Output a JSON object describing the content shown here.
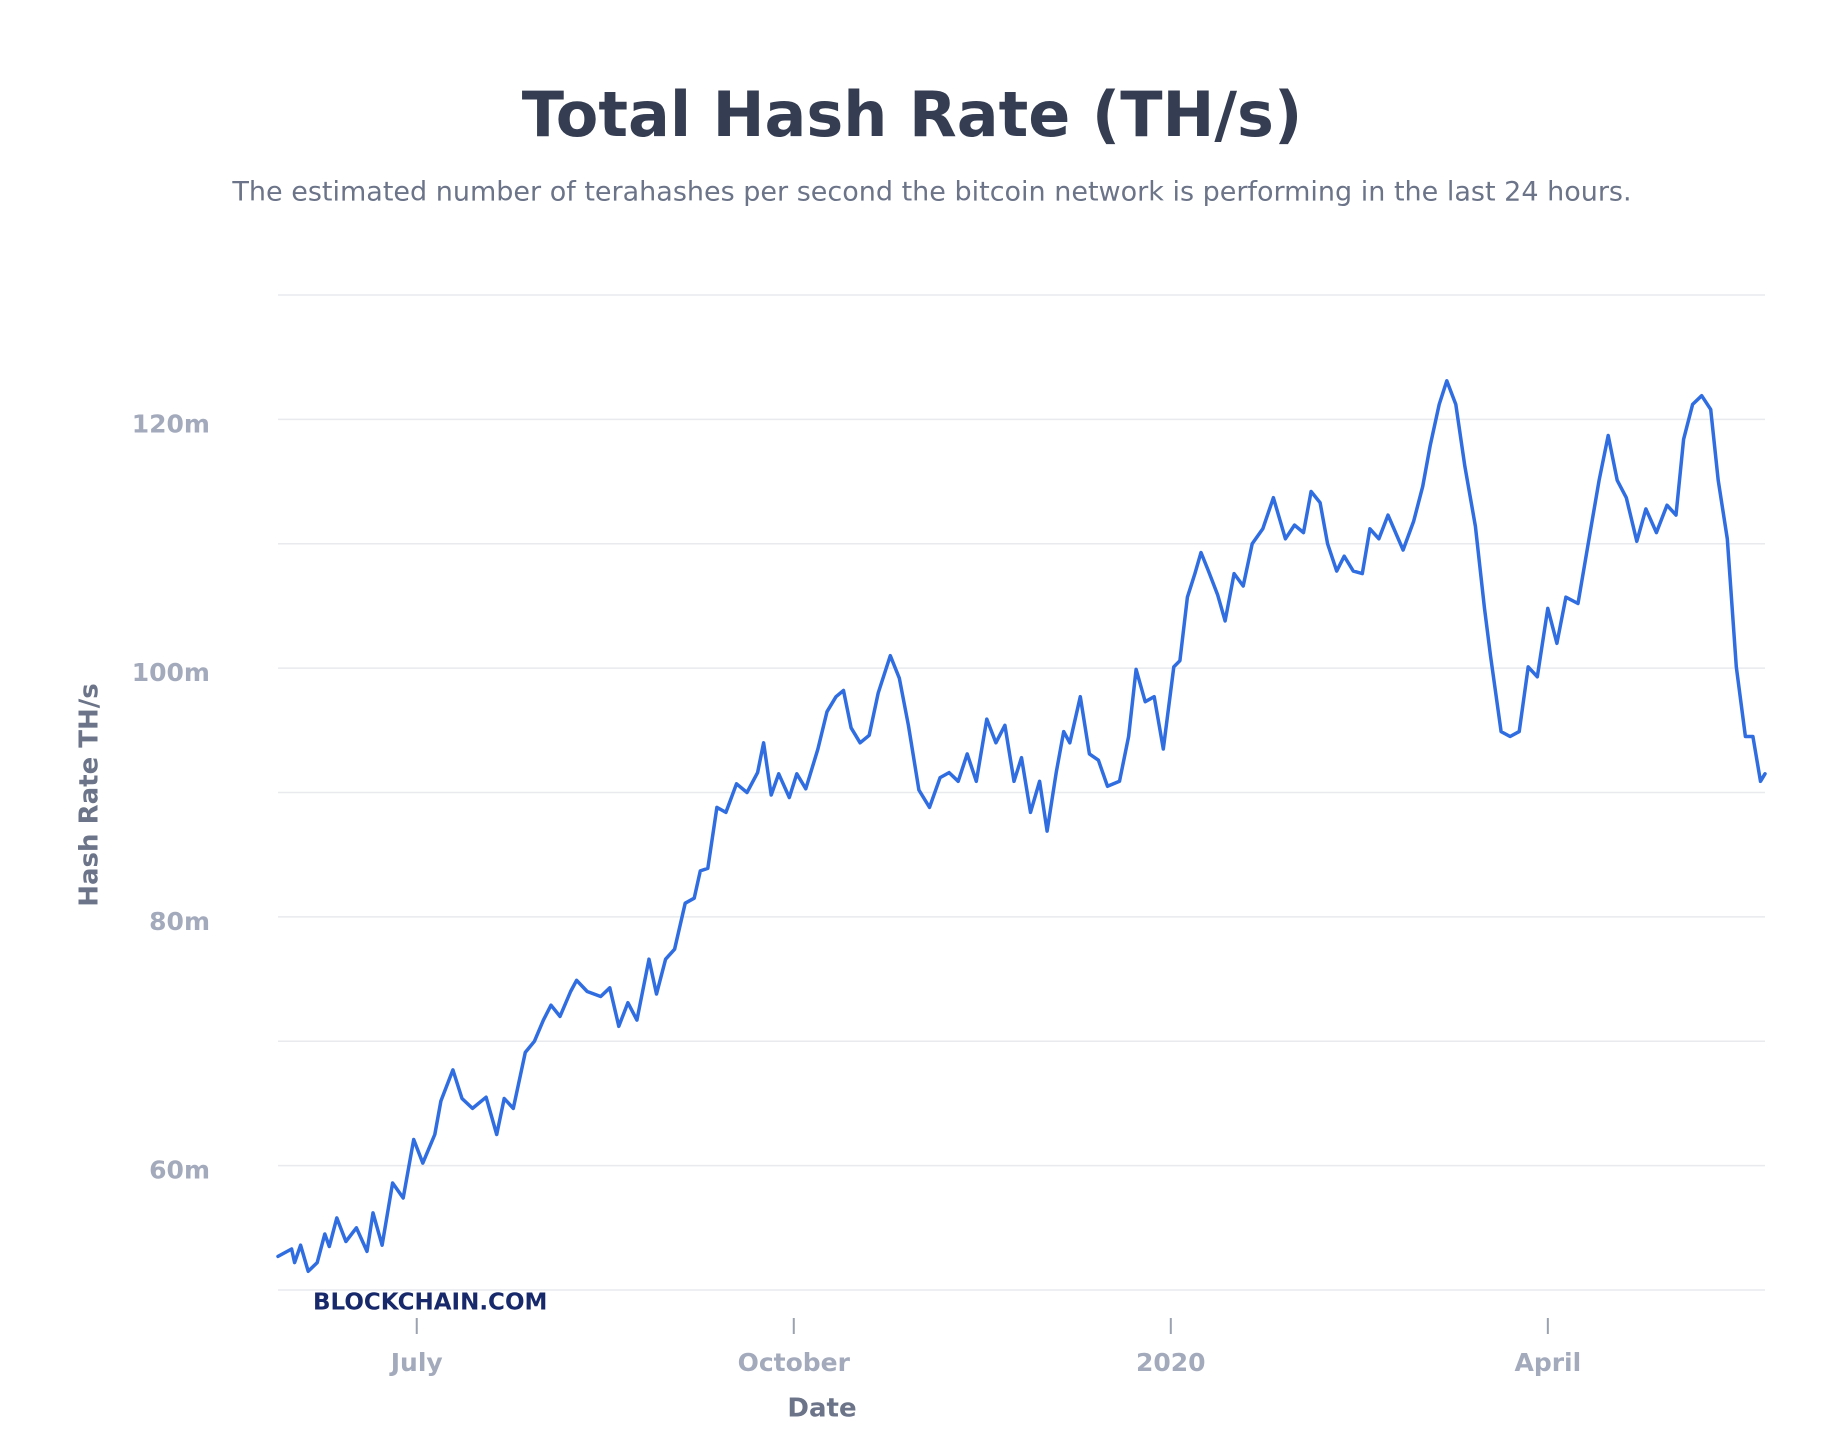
{
  "chart_data": {
    "type": "line",
    "title": "Total Hash Rate (TH/s)",
    "subtitle": "The estimated number of terahashes per second the bitcoin network is performing in the last 24 hours.",
    "x_label": "Date",
    "y_label": "Hash Rate TH/s",
    "watermark": "BLOCKCHAIN.COM",
    "color": "#2f6de1",
    "grid": true,
    "xlim": [
      2019.408,
      2020.394
    ],
    "xticks": [
      {
        "value": 2019.5,
        "label": "July"
      },
      {
        "value": 2019.75,
        "label": "October"
      },
      2020,
      {
        "value": 2020.25,
        "label": "April"
      }
    ],
    "ylim": [
      50000000,
      130000000
    ],
    "yticks": [
      {
        "value": 60000000,
        "label": "60m"
      },
      {
        "value": 80000000,
        "label": "80m"
      },
      {
        "value": 100000000,
        "label": "100m"
      },
      {
        "value": 120000000,
        "label": "120m"
      }
    ],
    "minor_yticks": [
      50000000,
      70000000,
      90000000,
      110000000,
      130000000
    ],
    "x": [
      2019.408,
      2019.417,
      2019.419,
      2019.423,
      2019.428,
      2019.434,
      2019.439,
      2019.442,
      2019.447,
      2019.453,
      2019.46,
      2019.467,
      2019.471,
      2019.477,
      2019.484,
      2019.491,
      2019.498,
      2019.504,
      2019.512,
      2019.516,
      2019.524,
      2019.53,
      2019.537,
      2019.546,
      2019.553,
      2019.558,
      2019.564,
      2019.572,
      2019.578,
      2019.584,
      2019.589,
      2019.595,
      2019.602,
      2019.606,
      2019.613,
      2019.622,
      2019.628,
      2019.634,
      2019.64,
      2019.646,
      2019.654,
      2019.659,
      2019.665,
      2019.671,
      2019.678,
      2019.684,
      2019.688,
      2019.693,
      2019.699,
      2019.705,
      2019.712,
      2019.719,
      2019.726,
      2019.73,
      2019.735,
      2019.74,
      2019.747,
      2019.752,
      2019.758,
      2019.766,
      2019.772,
      2019.778,
      2019.783,
      2019.788,
      2019.794,
      2019.8,
      2019.806,
      2019.814,
      2019.82,
      2019.826,
      2019.833,
      2019.84,
      2019.847,
      2019.853,
      2019.859,
      2019.865,
      2019.871,
      2019.878,
      2019.884,
      2019.89,
      2019.896,
      2019.901,
      2019.907,
      2019.913,
      2019.918,
      2019.924,
      2019.929,
      2019.933,
      2019.94,
      2019.946,
      2019.952,
      2019.958,
      2019.966,
      2019.972,
      2019.977,
      2019.983,
      2019.989,
      2019.995,
      2020.002,
      2020.006,
      2020.011,
      2020.016,
      2020.02,
      2020.025,
      2020.031,
      2020.036,
      2020.042,
      2020.048,
      2020.054,
      2020.061,
      2020.068,
      2020.076,
      2020.082,
      2020.088,
      2020.093,
      2020.099,
      2020.104,
      2020.11,
      2020.115,
      2020.121,
      2020.127,
      2020.132,
      2020.138,
      2020.144,
      2020.154,
      2020.161,
      2020.167,
      2020.172,
      2020.178,
      2020.183,
      2020.189,
      2020.195,
      2020.202,
      2020.208,
      2020.212,
      2020.219,
      2020.225,
      2020.231,
      2020.237,
      2020.243,
      2020.25,
      2020.256,
      2020.262,
      2020.27,
      2020.278,
      2020.284,
      2020.29,
      2020.296,
      2020.302,
      2020.309,
      2020.315,
      2020.322,
      2020.329,
      2020.335,
      2020.34,
      2020.346,
      2020.352,
      2020.358,
      2020.363,
      2020.369,
      2020.375,
      2020.381,
      2020.386,
      2020.391,
      2020.394
    ],
    "values": [
      52700000,
      53300000,
      52200000,
      53600000,
      51500000,
      52200000,
      54500000,
      53500000,
      55800000,
      53900000,
      55000000,
      53100000,
      56200000,
      53600000,
      58600000,
      57400000,
      62100000,
      60200000,
      62500000,
      65200000,
      67700000,
      65400000,
      64600000,
      65500000,
      62500000,
      65400000,
      64600000,
      69100000,
      70000000,
      71700000,
      72900000,
      72000000,
      74000000,
      74900000,
      74000000,
      73600000,
      74300000,
      71200000,
      73100000,
      71700000,
      76600000,
      73800000,
      76600000,
      77400000,
      81100000,
      81500000,
      83700000,
      83900000,
      88800000,
      88400000,
      90700000,
      90000000,
      91600000,
      94000000,
      89800000,
      91500000,
      89600000,
      91500000,
      90300000,
      93500000,
      96500000,
      97700000,
      98200000,
      95200000,
      94000000,
      94600000,
      98000000,
      101000000,
      99200000,
      95400000,
      90200000,
      88800000,
      91200000,
      91600000,
      90900000,
      93100000,
      90900000,
      95900000,
      94000000,
      95400000,
      90900000,
      92800000,
      88400000,
      90900000,
      86900000,
      91600000,
      94900000,
      94000000,
      97700000,
      93100000,
      92600000,
      90500000,
      90900000,
      94500000,
      99900000,
      97300000,
      97700000,
      93500000,
      100100000,
      100600000,
      105700000,
      107600000,
      109300000,
      107800000,
      105900000,
      103800000,
      107600000,
      106600000,
      110000000,
      111200000,
      113700000,
      110400000,
      111500000,
      110900000,
      114200000,
      113300000,
      110000000,
      107800000,
      109000000,
      107800000,
      107600000,
      111200000,
      110400000,
      112300000,
      109500000,
      111800000,
      114600000,
      117900000,
      121200000,
      123100000,
      121200000,
      116200000,
      111400000,
      104800000,
      101000000,
      94900000,
      94500000,
      94900000,
      100100000,
      99300000,
      104800000,
      102000000,
      105700000,
      105200000,
      110900000,
      115100000,
      118700000,
      115100000,
      113700000,
      110200000,
      112800000,
      110900000,
      113100000,
      112300000,
      118400000,
      121200000,
      121900000,
      120800000,
      115100000,
      110400000,
      100100000,
      94500000,
      94500000,
      90900000,
      91500000
    ]
  }
}
